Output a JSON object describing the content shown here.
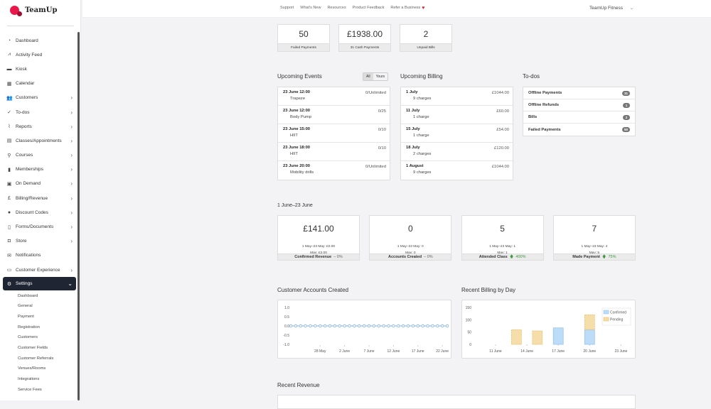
{
  "brand": "TeamUp",
  "nav": [
    {
      "label": "Dashboard",
      "icon": "gauge-icon",
      "glyph": "◔",
      "chev": false
    },
    {
      "label": "Activity Feed",
      "icon": "activity-icon",
      "glyph": "⩘",
      "chev": false
    },
    {
      "label": "Kiosk",
      "icon": "kiosk-icon",
      "glyph": "▬",
      "chev": false
    },
    {
      "label": "Calendar",
      "icon": "calendar-icon",
      "glyph": "▦",
      "chev": false
    },
    {
      "label": "Customers",
      "icon": "users-icon",
      "glyph": "👥",
      "chev": true
    },
    {
      "label": "To-dos",
      "icon": "check-icon",
      "glyph": "✓",
      "chev": true
    },
    {
      "label": "Reports",
      "icon": "chart-icon",
      "glyph": "⌇",
      "chev": true
    },
    {
      "label": "Classes/Appointments",
      "icon": "classes-icon",
      "glyph": "▤",
      "chev": true
    },
    {
      "label": "Courses",
      "icon": "runner-icon",
      "glyph": "⚲",
      "chev": true
    },
    {
      "label": "Memberships",
      "icon": "membership-icon",
      "glyph": "▮",
      "chev": true
    },
    {
      "label": "On Demand",
      "icon": "video-icon",
      "glyph": "▣",
      "chev": true
    },
    {
      "label": "Billing/Revenue",
      "icon": "pound-icon",
      "glyph": "£",
      "chev": true
    },
    {
      "label": "Discount Codes",
      "icon": "discount-icon",
      "glyph": "●",
      "chev": true
    },
    {
      "label": "Forms/Documents",
      "icon": "clipboard-icon",
      "glyph": "▯",
      "chev": true
    },
    {
      "label": "Store",
      "icon": "bag-icon",
      "glyph": "◘",
      "chev": true
    },
    {
      "label": "Notifications",
      "icon": "envelope-icon",
      "glyph": "✉",
      "chev": false
    },
    {
      "label": "Customer Experience",
      "icon": "monitor-icon",
      "glyph": "▭",
      "chev": true
    },
    {
      "label": "Settings",
      "icon": "gear-icon",
      "glyph": "⚙",
      "chev": true
    }
  ],
  "settings_sub": [
    "Dashboard",
    "General",
    "Payment",
    "Registration",
    "Customers",
    "Customer Fields",
    "Customer Referrals",
    "Venues/Rooms",
    "Integrations",
    "Service Fees"
  ],
  "top": {
    "links": [
      "Support",
      "What's New",
      "Resources",
      "Product Feedback",
      "Refer a Business"
    ],
    "account": "TeamUp Fitness"
  },
  "stats": [
    {
      "value": "50",
      "label": "Failed Payments"
    },
    {
      "value": "£1938.00",
      "label": "31 Cash Payments"
    },
    {
      "value": "2",
      "label": "Unpaid Bills"
    }
  ],
  "events": {
    "title": "Upcoming Events",
    "filters": [
      "All",
      "Yours"
    ],
    "items": [
      {
        "when": "23 June 12:00",
        "name": "Trapeze",
        "cap": "0/Unlimited"
      },
      {
        "when": "23 June 12:00",
        "name": "Body Pump",
        "cap": "0/25"
      },
      {
        "when": "23 June 15:00",
        "name": "HIIT",
        "cap": "0/10"
      },
      {
        "when": "23 June 18:00",
        "name": "HIIT",
        "cap": "0/10"
      },
      {
        "when": "23 June 20:00",
        "name": "Mobility drills",
        "cap": "0/Unlimited"
      }
    ]
  },
  "billing": {
    "title": "Upcoming Billing",
    "items": [
      {
        "date": "1 July",
        "charges": "9 charges",
        "amount": "£1044.00"
      },
      {
        "date": "11 July",
        "charges": "1 charge",
        "amount": "£60.00"
      },
      {
        "date": "15 July",
        "charges": "1 charge",
        "amount": "£54.00"
      },
      {
        "date": "18 July",
        "charges": "2 charges",
        "amount": "£120.00"
      },
      {
        "date": "1 August",
        "charges": "9 charges",
        "amount": "£1044.00"
      }
    ]
  },
  "todos": {
    "title": "To-dos",
    "items": [
      {
        "label": "Offline Payments",
        "count": "31"
      },
      {
        "label": "Offline Refunds",
        "count": "1"
      },
      {
        "label": "Bills",
        "count": "2"
      },
      {
        "label": "Failed Payments",
        "count": "50"
      }
    ]
  },
  "period": "1 June–23 June",
  "kpis": [
    {
      "value": "£141.00",
      "prev": "1 May–23 May: £0.00",
      "month": "May: £3.00",
      "label": "Confirmed Revenue",
      "change": "– 0%",
      "up": false
    },
    {
      "value": "0",
      "prev": "1 May–23 May: 0",
      "month": "May: 0",
      "label": "Accounts Created",
      "change": "– 0%",
      "up": false
    },
    {
      "value": "5",
      "prev": "1 May–23 May: 1",
      "month": "May: 1",
      "label": "Attended Class",
      "change": "400%",
      "up": true
    },
    {
      "value": "7",
      "prev": "1 May–23 May: 4",
      "month": "May: 5",
      "label": "Made Payment",
      "change": "75%",
      "up": true
    }
  ],
  "recent_revenue_title": "Recent Revenue",
  "chart_data": [
    {
      "type": "line",
      "title": "Customer Accounts Created",
      "ylim": [
        -1,
        1
      ],
      "yticks": [
        "1.0",
        "0.5",
        "0.0",
        "-0.5",
        "-1.0"
      ],
      "xticks": [
        "28 May",
        "2 June",
        "7 June",
        "12 June",
        "17 June",
        "22 June"
      ],
      "x_start": "22 May",
      "x_end": "23 June",
      "values": [
        0,
        0,
        0,
        0,
        0,
        0,
        0,
        0,
        0,
        0,
        0,
        0,
        0,
        0,
        0,
        0,
        0,
        0,
        0,
        0,
        0,
        0,
        0,
        0,
        0,
        0,
        0,
        0,
        0,
        0,
        0,
        0,
        0
      ],
      "color": "#7fb3e6"
    },
    {
      "type": "bar",
      "stacked": true,
      "title": "Recent Billing by Day",
      "ylim": [
        0,
        150
      ],
      "yticks": [
        "150",
        "100",
        "50",
        "0"
      ],
      "xticks": [
        "11 June",
        "14 June",
        "17 June",
        "20 June",
        "23 June"
      ],
      "legend": "top-right",
      "categories": [
        "13 June",
        "15 June",
        "17 June",
        "20 June"
      ],
      "series": [
        {
          "name": "Confirmed",
          "values": [
            0,
            0,
            67,
            60
          ],
          "color": "#bcdcf7"
        },
        {
          "name": "Pending",
          "values": [
            60,
            55,
            0,
            60
          ],
          "color": "#f5deaa"
        }
      ]
    }
  ]
}
